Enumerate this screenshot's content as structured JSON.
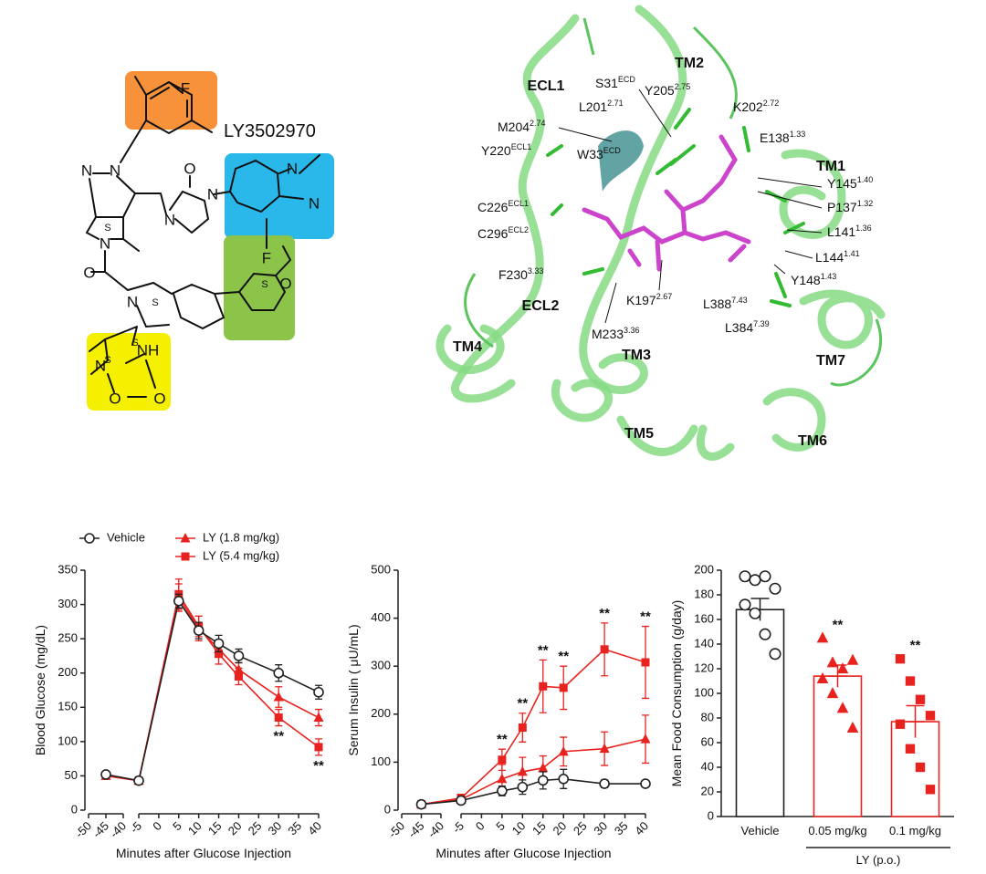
{
  "molecule": {
    "name": "LY3502970",
    "atoms": [
      "F",
      "N",
      "N",
      "O",
      "N",
      "N",
      "N",
      "N",
      "F",
      "S",
      "N",
      "O",
      "N",
      "S",
      "S",
      "O",
      "S",
      "S",
      "N",
      "NH",
      "O",
      "O"
    ]
  },
  "binding_site": {
    "helices": [
      "TM2",
      "ECL1",
      "TM1",
      "ECL2",
      "TM4",
      "TM3",
      "TM7",
      "TM5",
      "TM6"
    ],
    "residues": [
      {
        "name": "S31",
        "sup": "ECD"
      },
      {
        "name": "Y205",
        "sup": "2.75"
      },
      {
        "name": "L201",
        "sup": "2.71"
      },
      {
        "name": "K202",
        "sup": "2.72"
      },
      {
        "name": "M204",
        "sup": "2.74"
      },
      {
        "name": "E138",
        "sup": "1.33"
      },
      {
        "name": "Y220",
        "sup": "ECL1"
      },
      {
        "name": "W33",
        "sup": "ECD"
      },
      {
        "name": "Y145",
        "sup": "1.40"
      },
      {
        "name": "C226",
        "sup": "ECL1"
      },
      {
        "name": "P137",
        "sup": "1.32"
      },
      {
        "name": "L141",
        "sup": "1.36"
      },
      {
        "name": "C296",
        "sup": "ECL2"
      },
      {
        "name": "L144",
        "sup": "1.41"
      },
      {
        "name": "F230",
        "sup": "3.33"
      },
      {
        "name": "Y148",
        "sup": "1.43"
      },
      {
        "name": "K197",
        "sup": "2.67"
      },
      {
        "name": "L388",
        "sup": "7.43"
      },
      {
        "name": "M233",
        "sup": "3.36"
      },
      {
        "name": "L384",
        "sup": "7.39"
      }
    ]
  },
  "chart_data": [
    {
      "type": "line",
      "y_label": "Blood Glucose (mg/dL)",
      "x_label": "Minutes after Glucose Injection",
      "x": [
        -45,
        -5,
        5,
        10,
        15,
        20,
        30,
        40
      ],
      "x_segments": [
        {
          "xlim": [
            -50,
            -40
          ],
          "xticks": [
            -50,
            -45,
            -40
          ]
        },
        {
          "xlim": [
            -5,
            40
          ],
          "xticks": [
            -5,
            0,
            5,
            10,
            15,
            20,
            25,
            30,
            35,
            40
          ]
        }
      ],
      "ylim": [
        0,
        350
      ],
      "yticks": [
        0,
        50,
        100,
        150,
        200,
        250,
        300,
        350
      ],
      "legend": "top-left",
      "series": [
        {
          "name": "Vehicle",
          "color": "#222222",
          "marker": "open-circle",
          "values": [
            52,
            43,
            305,
            262,
            243,
            225,
            200,
            172
          ],
          "errors": [
            4,
            5,
            10,
            12,
            12,
            10,
            12,
            10
          ]
        },
        {
          "name": "LY (1.8 mg/kg)",
          "color": "#e8231f",
          "marker": "triangle",
          "values": [
            50,
            43,
            310,
            265,
            235,
            205,
            165,
            135
          ],
          "errors": [
            4,
            4,
            20,
            18,
            12,
            10,
            15,
            12
          ]
        },
        {
          "name": "LY (5.4 mg/kg)",
          "color": "#e8231f",
          "marker": "square",
          "values": [
            50,
            43,
            315,
            268,
            228,
            195,
            135,
            92
          ],
          "errors": [
            4,
            4,
            22,
            15,
            15,
            12,
            12,
            12
          ]
        }
      ],
      "annotations": [
        {
          "x": 30,
          "text": "**",
          "position": "below"
        },
        {
          "x": 40,
          "text": "**",
          "position": "below"
        }
      ]
    },
    {
      "type": "line",
      "y_label": "Serum Insulin ( μU/mL)",
      "x_label": "Minutes after Glucose Injection",
      "x": [
        -45,
        -5,
        5,
        10,
        15,
        20,
        30,
        40
      ],
      "x_segments": [
        {
          "xlim": [
            -50,
            -40
          ],
          "xticks": [
            -50,
            -45,
            -40
          ]
        },
        {
          "xlim": [
            -5,
            40
          ],
          "xticks": [
            -5,
            0,
            5,
            10,
            15,
            20,
            25,
            30,
            35,
            40
          ]
        }
      ],
      "ylim": [
        0,
        500
      ],
      "yticks": [
        0,
        100,
        200,
        300,
        400,
        500
      ],
      "series": [
        {
          "color": "#222222",
          "marker": "open-circle",
          "values": [
            12,
            20,
            40,
            48,
            62,
            65,
            55,
            55
          ],
          "errors": [
            3,
            4,
            10,
            15,
            18,
            20,
            8,
            5
          ]
        },
        {
          "color": "#e8231f",
          "marker": "triangle",
          "values": [
            12,
            22,
            65,
            80,
            88,
            122,
            128,
            148
          ],
          "errors": [
            3,
            5,
            30,
            30,
            25,
            30,
            35,
            50
          ]
        },
        {
          "color": "#e8231f",
          "marker": "square",
          "values": [
            12,
            25,
            105,
            172,
            258,
            255,
            335,
            308
          ],
          "errors": [
            3,
            8,
            22,
            30,
            55,
            45,
            55,
            75
          ]
        }
      ],
      "annotations": [
        {
          "x": 5,
          "text": "**",
          "position": "above"
        },
        {
          "x": 10,
          "text": "**",
          "position": "above"
        },
        {
          "x": 15,
          "text": "**",
          "position": "above"
        },
        {
          "x": 20,
          "text": "**",
          "position": "above"
        },
        {
          "x": 30,
          "text": "**",
          "position": "above"
        },
        {
          "x": 40,
          "text": "**",
          "position": "above"
        }
      ]
    },
    {
      "type": "bar",
      "y_label": "Mean Food Consumption (g/day)",
      "categories": [
        "Vehicle",
        "0.05 mg/kg",
        "0.1 mg/kg"
      ],
      "group_label": "LY (p.o.)",
      "values": [
        168,
        114,
        77
      ],
      "errors": [
        9,
        9,
        13
      ],
      "colors": [
        "#222222",
        "#e8231f",
        "#e8231f"
      ],
      "markers": [
        "open-circle",
        "triangle",
        "square"
      ],
      "points": [
        [
          195,
          192,
          195,
          185,
          172,
          165,
          148,
          132
        ],
        [
          145,
          125,
          120,
          127,
          112,
          100,
          88,
          72
        ],
        [
          128,
          110,
          95,
          82,
          75,
          55,
          40,
          22
        ]
      ],
      "ylim": [
        0,
        200
      ],
      "yticks": [
        0,
        20,
        40,
        60,
        80,
        100,
        120,
        140,
        160,
        180,
        200
      ],
      "annotations": [
        {
          "x": "0.05 mg/kg",
          "text": "**"
        },
        {
          "x": "0.1 mg/kg",
          "text": "**"
        }
      ]
    }
  ]
}
